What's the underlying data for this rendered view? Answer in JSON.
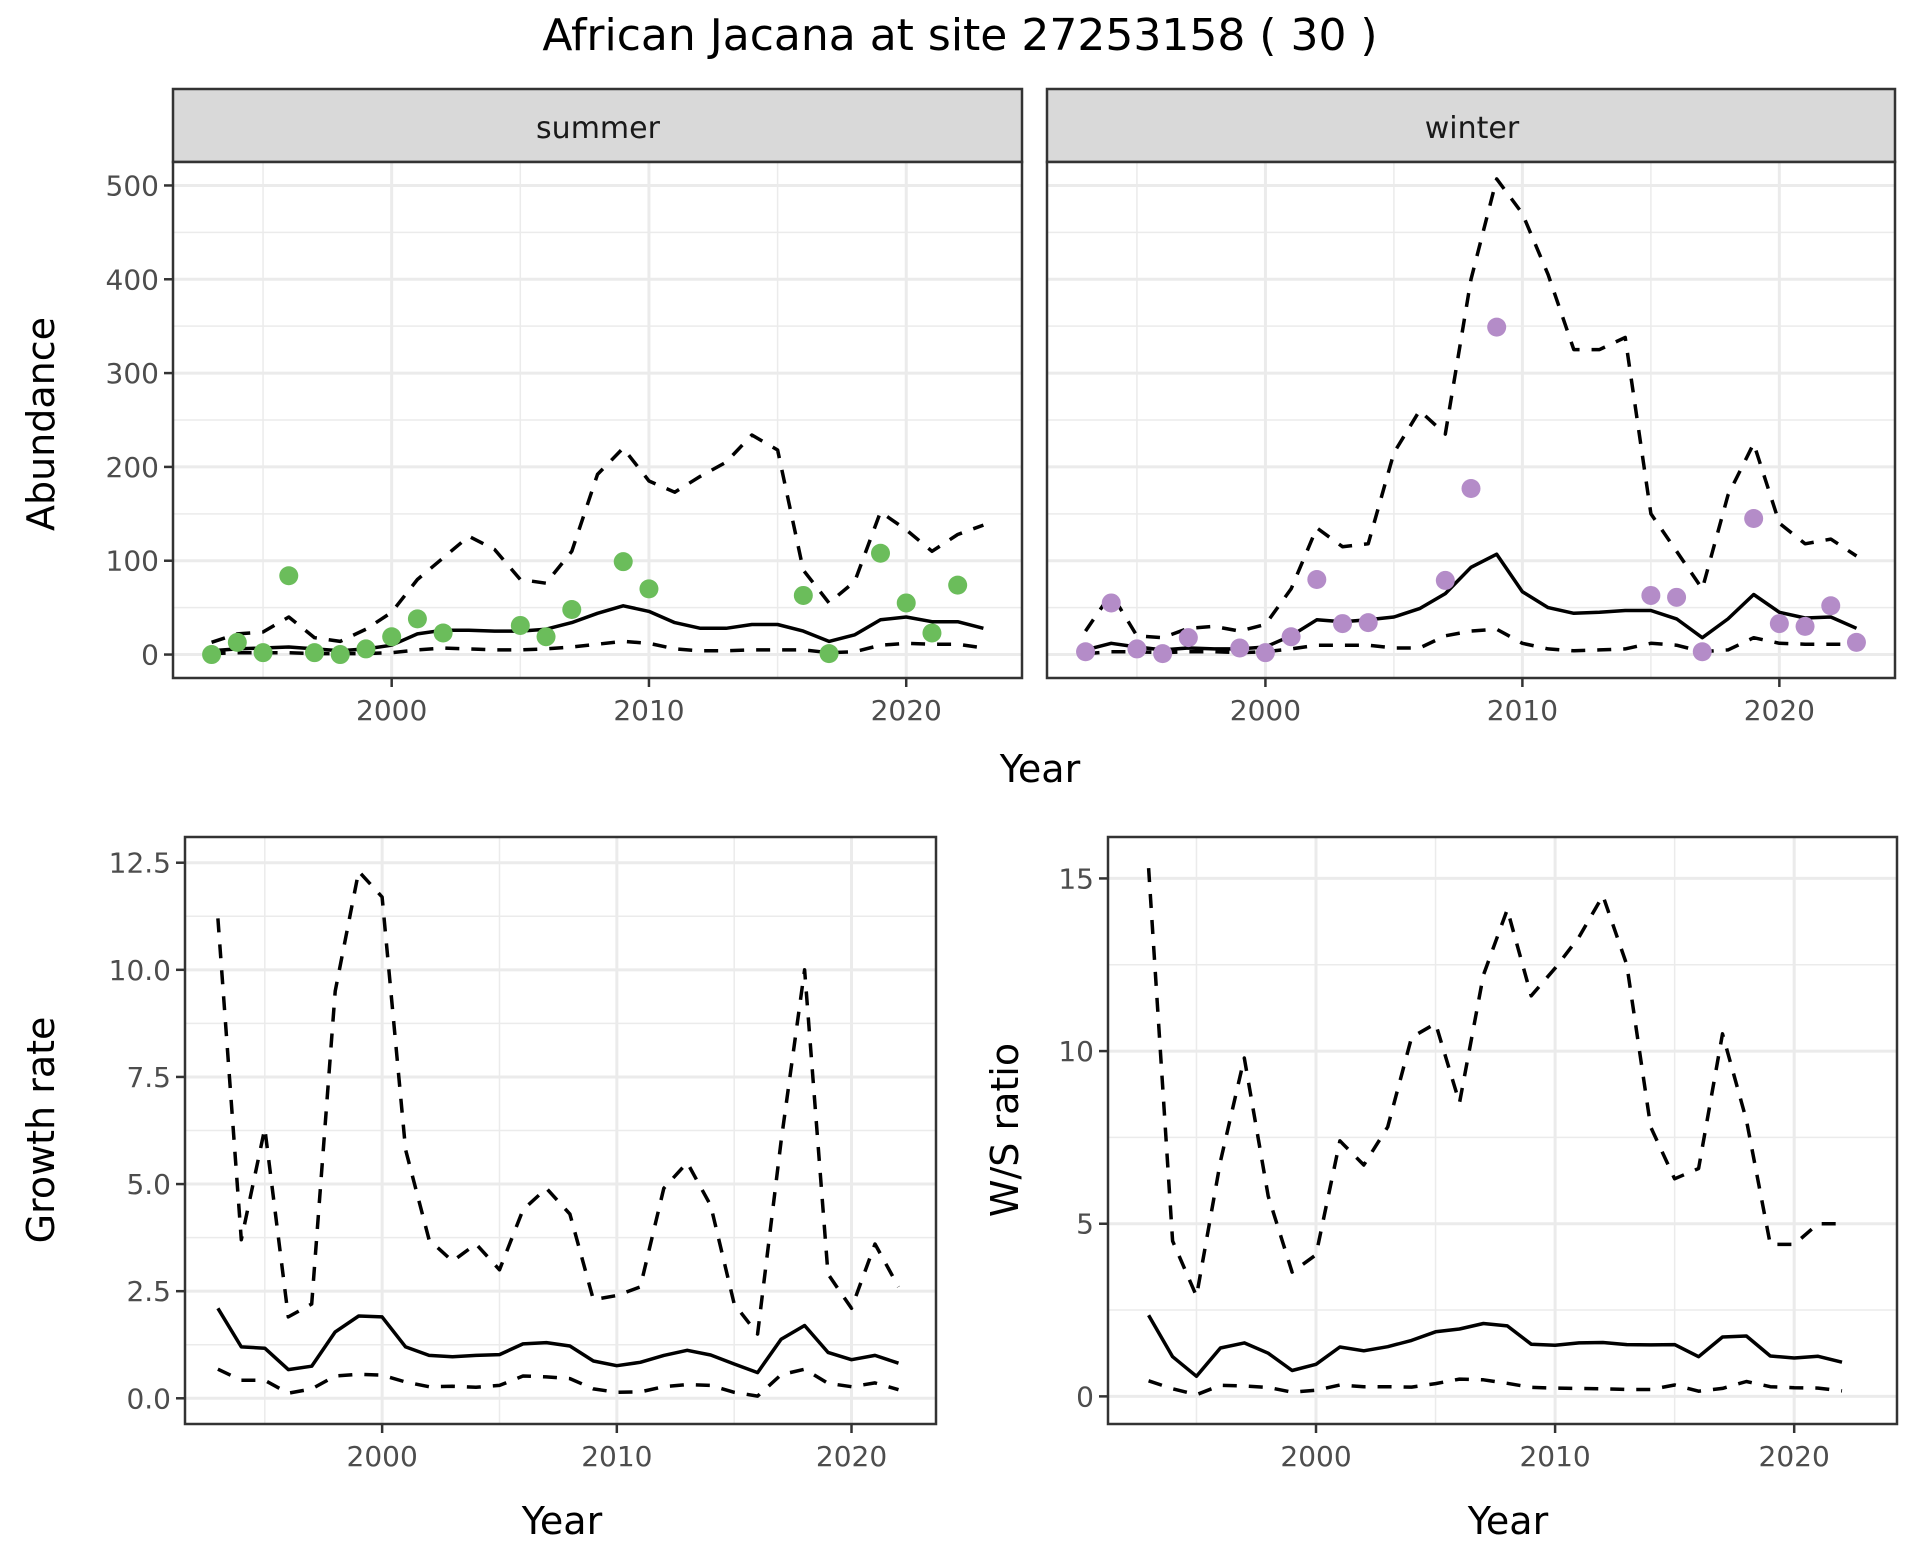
{
  "title": "African Jacana at site 27253158 ( 30 )",
  "colors": {
    "summer_points": "#6BBD5B",
    "winter_points": "#B48CC8",
    "strip_fill": "#D9D9D9",
    "grid": "#EBEBEB",
    "panel_border": "#333333",
    "line": "#000000"
  },
  "chart_data": [
    {
      "type": "line",
      "panel": "summer",
      "strip_label": "summer",
      "xlabel": "Year",
      "ylabel": "Abundance",
      "ylim": [
        -25,
        525
      ],
      "xlim": [
        1991.5,
        2024.5
      ],
      "yticks": [
        0,
        100,
        200,
        300,
        400,
        500
      ],
      "ytick_labels": [
        "0",
        "100",
        "200",
        "300",
        "400",
        "500"
      ],
      "xticks": [
        2000,
        2010,
        2020
      ],
      "xtick_labels": [
        "2000",
        "2010",
        "2020"
      ],
      "grid": true,
      "x": [
        1993,
        1994,
        1995,
        1996,
        1997,
        1998,
        1999,
        2000,
        2001,
        2002,
        2003,
        2004,
        2005,
        2006,
        2007,
        2008,
        2009,
        2010,
        2011,
        2012,
        2013,
        2014,
        2015,
        2016,
        2017,
        2018,
        2019,
        2020,
        2021,
        2022,
        2023
      ],
      "series": [
        {
          "name": "upper",
          "style": "dashed",
          "values": [
            13,
            22,
            24,
            40,
            18,
            14,
            27,
            45,
            80,
            103,
            126,
            112,
            80,
            76,
            110,
            192,
            220,
            185,
            173,
            190,
            205,
            234,
            218,
            90,
            55,
            78,
            152,
            133,
            110,
            128,
            138
          ]
        },
        {
          "name": "mean",
          "style": "solid",
          "values": [
            4,
            6,
            7,
            8,
            6,
            4,
            6,
            10,
            22,
            26,
            26,
            25,
            25,
            27,
            34,
            44,
            52,
            46,
            34,
            28,
            28,
            32,
            32,
            25,
            14,
            21,
            37,
            40,
            35,
            35,
            28
          ]
        },
        {
          "name": "lower",
          "style": "dashed",
          "values": [
            1,
            2,
            2,
            2,
            1,
            1,
            1,
            2,
            5,
            7,
            6,
            5,
            5,
            6,
            8,
            11,
            14,
            12,
            6,
            4,
            4,
            5,
            5,
            5,
            2,
            3,
            10,
            12,
            11,
            11,
            7
          ]
        }
      ],
      "points": {
        "x": [
          1993,
          1994,
          1995,
          1996,
          1997,
          1998,
          1999,
          2000,
          2001,
          2002,
          2005,
          2006,
          2007,
          2009,
          2010,
          2016,
          2017,
          2019,
          2020,
          2021,
          2022
        ],
        "y": [
          0,
          13,
          2,
          84,
          2,
          0,
          6,
          19,
          38,
          23,
          31,
          19,
          48,
          99,
          70,
          63,
          1,
          108,
          55,
          23,
          74
        ]
      }
    },
    {
      "type": "line",
      "panel": "winter",
      "strip_label": "winter",
      "xlabel": "Year",
      "ylabel": "Abundance",
      "ylim": [
        -25,
        525
      ],
      "xlim": [
        1991.5,
        2024.5
      ],
      "xticks": [
        2000,
        2010,
        2020
      ],
      "xtick_labels": [
        "2000",
        "2010",
        "2020"
      ],
      "grid": true,
      "x": [
        1993,
        1994,
        1995,
        1996,
        1997,
        1998,
        1999,
        2000,
        2001,
        2002,
        2003,
        2004,
        2005,
        2006,
        2007,
        2008,
        2009,
        2010,
        2011,
        2012,
        2013,
        2014,
        2015,
        2016,
        2017,
        2018,
        2019,
        2020,
        2021,
        2022,
        2023
      ],
      "series": [
        {
          "name": "upper",
          "style": "dashed",
          "values": [
            25,
            65,
            20,
            18,
            28,
            30,
            25,
            32,
            70,
            135,
            115,
            118,
            215,
            260,
            235,
            400,
            507,
            470,
            405,
            325,
            325,
            338,
            150,
            110,
            70,
            170,
            225,
            140,
            118,
            123,
            105
          ]
        },
        {
          "name": "mean",
          "style": "solid",
          "values": [
            5,
            12,
            8,
            5,
            7,
            6,
            6,
            8,
            20,
            37,
            35,
            37,
            40,
            49,
            65,
            93,
            107,
            67,
            50,
            44,
            45,
            47,
            47,
            38,
            18,
            38,
            64,
            45,
            39,
            40,
            28
          ]
        },
        {
          "name": "lower",
          "style": "dashed",
          "values": [
            1,
            3,
            3,
            2,
            3,
            3,
            2,
            3,
            6,
            10,
            10,
            10,
            7,
            7,
            20,
            25,
            27,
            12,
            6,
            4,
            5,
            6,
            12,
            10,
            3,
            5,
            18,
            12,
            11,
            11,
            11
          ]
        }
      ],
      "points": {
        "x": [
          1993,
          1994,
          1995,
          1996,
          1997,
          1999,
          2000,
          2001,
          2002,
          2003,
          2004,
          2007,
          2008,
          2009,
          2015,
          2016,
          2017,
          2019,
          2020,
          2021,
          2022,
          2023
        ],
        "y": [
          3,
          55,
          6,
          1,
          18,
          7,
          2,
          19,
          80,
          33,
          34,
          79,
          177,
          349,
          63,
          61,
          3,
          145,
          33,
          30,
          52,
          13
        ]
      }
    },
    {
      "type": "line",
      "panel": "growth",
      "xlabel": "Year",
      "ylabel": "Growth rate",
      "ylim": [
        -0.6,
        13.1
      ],
      "xlim": [
        1991.6,
        2023.6
      ],
      "yticks": [
        0,
        2.5,
        5,
        7.5,
        10,
        12.5
      ],
      "ytick_labels": [
        "0.0",
        "2.5",
        "5.0",
        "7.5",
        "10.0",
        "12.5"
      ],
      "xticks": [
        2000,
        2010,
        2020
      ],
      "xtick_labels": [
        "2000",
        "2010",
        "2020"
      ],
      "grid": true,
      "x": [
        1993,
        1994,
        1995,
        1996,
        1997,
        1998,
        1999,
        2000,
        2001,
        2002,
        2003,
        2004,
        2005,
        2006,
        2007,
        2008,
        2009,
        2010,
        2011,
        2012,
        2013,
        2014,
        2015,
        2016,
        2017,
        2018,
        2019,
        2020,
        2021,
        2022
      ],
      "series": [
        {
          "name": "upper",
          "style": "dashed",
          "values": [
            11.2,
            3.7,
            6.3,
            1.9,
            2.2,
            9.5,
            12.3,
            11.7,
            5.8,
            3.7,
            3.2,
            3.6,
            3.0,
            4.4,
            4.9,
            4.3,
            2.3,
            2.4,
            2.6,
            4.9,
            5.5,
            4.5,
            2.2,
            1.5,
            6.0,
            10.0,
            2.9,
            2.1,
            3.6,
            2.6
          ]
        },
        {
          "name": "mean",
          "style": "solid",
          "values": [
            2.1,
            1.2,
            1.17,
            0.67,
            0.75,
            1.55,
            1.92,
            1.9,
            1.2,
            1.0,
            0.97,
            1.0,
            1.02,
            1.27,
            1.3,
            1.22,
            0.87,
            0.76,
            0.84,
            1.0,
            1.12,
            1.01,
            0.8,
            0.6,
            1.38,
            1.7,
            1.07,
            0.9,
            1.0,
            0.82
          ]
        },
        {
          "name": "lower",
          "style": "dashed",
          "values": [
            0.68,
            0.42,
            0.42,
            0.12,
            0.22,
            0.52,
            0.56,
            0.54,
            0.38,
            0.27,
            0.28,
            0.26,
            0.3,
            0.52,
            0.5,
            0.46,
            0.22,
            0.14,
            0.15,
            0.27,
            0.32,
            0.3,
            0.14,
            0.05,
            0.55,
            0.68,
            0.35,
            0.27,
            0.36,
            0.2
          ]
        }
      ]
    },
    {
      "type": "line",
      "panel": "ws_ratio",
      "xlabel": "Year",
      "ylabel": "W/S ratio",
      "ylim": [
        -0.8,
        16.2
      ],
      "xlim": [
        1991.3,
        2024.3
      ],
      "yticks": [
        0,
        5,
        10,
        15
      ],
      "ytick_labels": [
        "0",
        "5",
        "10",
        "15"
      ],
      "xticks": [
        2000,
        2010,
        2020
      ],
      "xtick_labels": [
        "2000",
        "2010",
        "2020"
      ],
      "grid": true,
      "x": [
        1993,
        1994,
        1995,
        1996,
        1997,
        1998,
        1999,
        2000,
        2001,
        2002,
        2003,
        2004,
        2005,
        2006,
        2007,
        2008,
        2009,
        2010,
        2011,
        2012,
        2013,
        2014,
        2015,
        2016,
        2017,
        2018,
        2019,
        2020,
        2021,
        2022
      ],
      "series": [
        {
          "name": "upper",
          "style": "dashed",
          "values": [
            15.3,
            4.5,
            2.9,
            6.8,
            9.8,
            5.8,
            3.6,
            4.1,
            7.4,
            6.7,
            7.8,
            10.4,
            10.8,
            8.5,
            12.2,
            14.1,
            11.6,
            12.4,
            13.3,
            14.5,
            12.5,
            7.8,
            6.3,
            6.6,
            10.5,
            8.0,
            4.4,
            4.4,
            5.0,
            5.0
          ]
        },
        {
          "name": "mean",
          "style": "solid",
          "values": [
            2.35,
            1.15,
            0.58,
            1.4,
            1.55,
            1.25,
            0.75,
            0.93,
            1.43,
            1.32,
            1.44,
            1.62,
            1.87,
            1.95,
            2.11,
            2.04,
            1.51,
            1.48,
            1.55,
            1.56,
            1.5,
            1.49,
            1.5,
            1.15,
            1.72,
            1.75,
            1.17,
            1.11,
            1.16,
            0.99
          ]
        },
        {
          "name": "lower",
          "style": "dashed",
          "values": [
            0.45,
            0.22,
            0.05,
            0.32,
            0.3,
            0.26,
            0.12,
            0.18,
            0.33,
            0.28,
            0.28,
            0.27,
            0.37,
            0.5,
            0.48,
            0.38,
            0.26,
            0.24,
            0.23,
            0.22,
            0.2,
            0.2,
            0.33,
            0.15,
            0.23,
            0.43,
            0.28,
            0.25,
            0.24,
            0.16
          ]
        }
      ]
    }
  ]
}
